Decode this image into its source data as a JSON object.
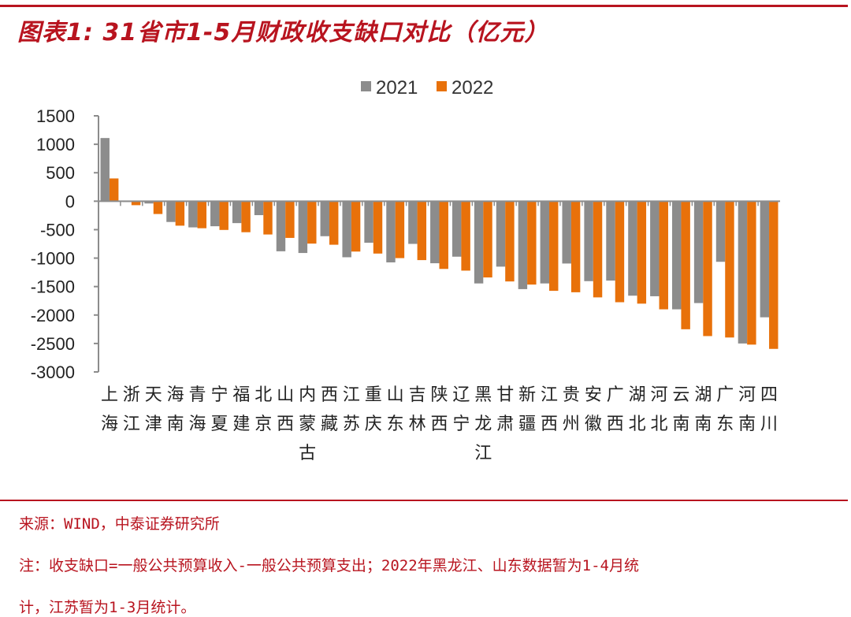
{
  "title": "图表1: 31省市1-5月财政收支缺口对比（亿元）",
  "source": "来源：WIND，中泰证券研究所",
  "note_line1": "注：收支缺口=一般公共预算收入-一般公共预算支出；2022年黑龙江、山东数据暂为1-4月统",
  "note_line2": "计，江苏暂为1-3月统计。",
  "colors": {
    "accent": "#b8141f",
    "series_2021": "#8c8c8c",
    "series_2022": "#e8710a"
  },
  "chart_data": {
    "type": "bar",
    "title": "31省市1-5月财政收支缺口对比（亿元）",
    "xlabel": "",
    "ylabel": "",
    "ylim": [
      -3000,
      1500
    ],
    "yticks": [
      1500,
      1000,
      500,
      0,
      -500,
      -1000,
      -1500,
      -2000,
      -2500,
      -3000
    ],
    "legend_position": "top-center",
    "grid": false,
    "categories": [
      "上海",
      "浙江",
      "天津",
      "海南",
      "青海",
      "宁夏",
      "福建",
      "北京",
      "山西",
      "内蒙古",
      "西藏",
      "江苏",
      "重庆",
      "山东",
      "吉林",
      "陕西",
      "辽宁",
      "黑龙江",
      "甘肃",
      "新疆",
      "江西",
      "贵州",
      "安徽",
      "广西",
      "湖北",
      "河北",
      "云南",
      "湖南",
      "广东",
      "河南",
      "四川"
    ],
    "series": [
      {
        "name": "2021",
        "values": [
          1110,
          -10,
          -40,
          -365,
          -460,
          -440,
          -385,
          -245,
          -880,
          -910,
          -615,
          -985,
          -730,
          -1075,
          -750,
          -1090,
          -975,
          -1445,
          -1150,
          -1545,
          -1445,
          -1095,
          -1405,
          -1395,
          -1660,
          -1670,
          -1900,
          -1790,
          -1065,
          -2500,
          -2040
        ]
      },
      {
        "name": "2022",
        "values": [
          400,
          -70,
          -225,
          -430,
          -475,
          -505,
          -545,
          -585,
          -645,
          -745,
          -765,
          -885,
          -920,
          -1000,
          -1035,
          -1190,
          -1220,
          -1340,
          -1410,
          -1465,
          -1575,
          -1600,
          -1690,
          -1775,
          -1800,
          -1900,
          -2250,
          -2370,
          -2395,
          -2520,
          -2595
        ]
      }
    ]
  }
}
